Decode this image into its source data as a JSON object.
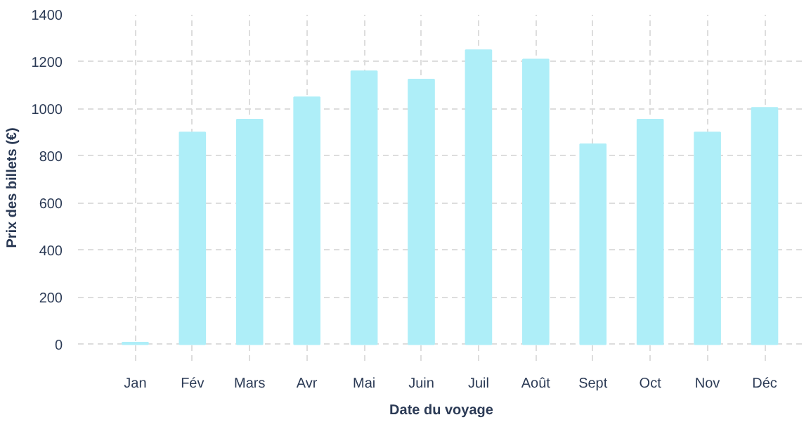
{
  "chart_data": {
    "type": "bar",
    "xlabel": "Date du voyage",
    "ylabel": "Prix des billets (€)",
    "categories": [
      "Jan",
      "Fév",
      "Mars",
      "Avr",
      "Mai",
      "Juin",
      "Juil",
      "Août",
      "Sept",
      "Oct",
      "Nov",
      "Déc"
    ],
    "values": [
      8,
      900,
      955,
      1050,
      1160,
      1125,
      1250,
      1210,
      850,
      955,
      900,
      1005
    ],
    "color": "#aeeef8",
    "ylim": [
      -70,
      1400
    ],
    "yticks": [
      0,
      200,
      400,
      600,
      800,
      1000,
      1200,
      1400
    ],
    "grid": true
  }
}
